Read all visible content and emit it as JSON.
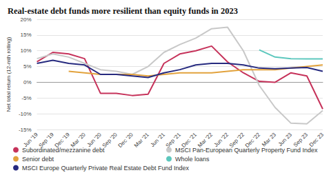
{
  "chart_data": {
    "type": "line",
    "title": "Real-estate debt funds more resilient than equity funds in 2023",
    "y_label": "Net total return (12-mth rolling)",
    "categories": [
      "Jun '19",
      "Sep '19",
      "Dec '19",
      "Mar '20",
      "Jun '20",
      "Sep '20",
      "Dec '20",
      "Mar '21",
      "Jun '21",
      "Sep '21",
      "Dec '21",
      "Mar '22",
      "Jun '22",
      "Sep '22",
      "Dec '22",
      "Mar 23",
      "Jun 23",
      "Sep 23",
      "Dec 23"
    ],
    "series": [
      {
        "name": "Subordinated/mezzanine debt",
        "color": "#c6325a",
        "values": [
          6.5,
          9.5,
          9,
          7.5,
          -3.5,
          -3.5,
          -4.2,
          -3.8,
          6,
          9,
          10,
          11.5,
          6.5,
          3,
          0.3,
          0,
          3,
          2,
          -8.5
        ]
      },
      {
        "name": "MSCI Pan-European Quarterly Property Fund Index",
        "color": "#c8c8c8",
        "values": [
          7.5,
          9,
          8,
          6,
          4,
          3.5,
          2.5,
          5,
          9.5,
          12,
          14,
          17,
          17.5,
          10,
          -1,
          -8,
          -13,
          -13.2,
          -9
        ]
      },
      {
        "name": "Senior debt",
        "color": "#e2a23c",
        "values": [
          null,
          null,
          3.5,
          3,
          2.5,
          2.5,
          2.5,
          2,
          2.5,
          3,
          3,
          3,
          3.5,
          4,
          4,
          4,
          4.5,
          5,
          5.5
        ]
      },
      {
        "name": "Whole loans",
        "color": "#5cc7bd",
        "values": [
          null,
          null,
          null,
          null,
          null,
          null,
          null,
          null,
          null,
          null,
          null,
          null,
          null,
          null,
          10.3,
          8,
          7.5,
          7.4,
          7.4
        ]
      },
      {
        "name": "MSCI Europe Quarterly Private Real Estate Debt Fund Index",
        "color": "#262a7f",
        "values": [
          6,
          7,
          6,
          5.5,
          2.5,
          2.5,
          2,
          1.5,
          3,
          4,
          5.5,
          6,
          6,
          5.5,
          4.5,
          4.3,
          4.5,
          4.7,
          3.5
        ]
      }
    ],
    "ylim": [
      -15,
      20
    ],
    "yticks": [
      {
        "value": -15,
        "label": "-15%"
      },
      {
        "value": -10,
        "label": "-10%"
      },
      {
        "value": -5,
        "label": "-5%"
      },
      {
        "value": 0,
        "label": "0%"
      },
      {
        "value": 5,
        "label": "5%"
      },
      {
        "value": 10,
        "label": "10%"
      },
      {
        "value": 15,
        "label": "15%"
      },
      {
        "value": 20,
        "label": "20%"
      }
    ],
    "grid": true,
    "legend": "bottom"
  }
}
